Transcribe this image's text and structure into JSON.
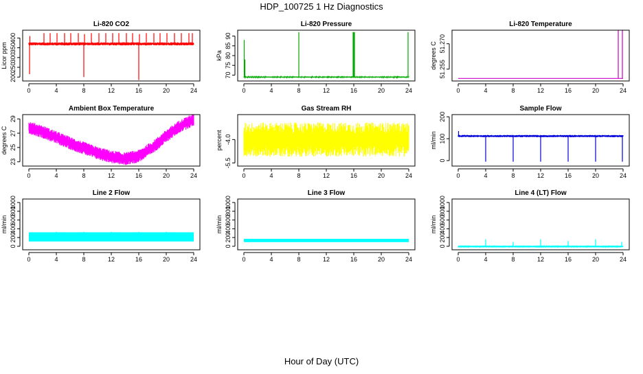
{
  "figure": {
    "title": "HDP_100725  1 Hz Diagnostics",
    "xlabel": "Hour of Day (UTC)"
  },
  "chart_data": [
    {
      "type": "line",
      "title": "Li-820 CO2",
      "ylabel": "Licor ppm",
      "color": "#ff0000",
      "xlim": [
        0,
        24
      ],
      "ylim": [
        180,
        440
      ],
      "xticks": [
        0,
        4,
        8,
        12,
        16,
        20,
        24
      ],
      "yticks": [
        200,
        250,
        300,
        350,
        400
      ],
      "baseline": 370,
      "noise": 8,
      "x": [
        0.1,
        0.15,
        2.2,
        3.1,
        4.1,
        5.2,
        6.1,
        7.2,
        8.0,
        8.1,
        9.1,
        10.2,
        11.2,
        12.2,
        13.1,
        14.2,
        15.1,
        16.0,
        16.1,
        17.1,
        18.2,
        19.1,
        20.1,
        21.2,
        22.2,
        23.3,
        23.8
      ],
      "y": [
        215,
        410,
        425,
        425,
        425,
        425,
        425,
        425,
        200,
        420,
        425,
        425,
        425,
        425,
        425,
        425,
        425,
        185,
        420,
        425,
        425,
        425,
        425,
        425,
        425,
        425,
        425
      ]
    },
    {
      "type": "line",
      "title": "Li-820 Pressure",
      "ylabel": "kPa",
      "color": "#00aa00",
      "xlim": [
        0,
        24
      ],
      "ylim": [
        67,
        93
      ],
      "xticks": [
        0,
        4,
        8,
        12,
        16,
        20,
        24
      ],
      "yticks": [
        70,
        75,
        80,
        85,
        90
      ],
      "baseline": 69,
      "noise": 0.3,
      "x": [
        0.05,
        0.15,
        8.0,
        15.9,
        16.0,
        16.1,
        23.9
      ],
      "y": [
        88,
        78,
        92,
        92,
        92,
        92,
        92
      ]
    },
    {
      "type": "line",
      "title": "Li-820 Temperature",
      "ylabel": "degrees C",
      "color": "#cc00cc",
      "xlim": [
        0,
        24
      ],
      "ylim": [
        51.248,
        51.278
      ],
      "xticks": [
        0,
        4,
        8,
        12,
        16,
        20,
        24
      ],
      "yticks": [
        51.255,
        51.27
      ],
      "yticklabels": [
        "51.255",
        "51.270"
      ],
      "baseline": 51.2495,
      "noise": 0,
      "x": [
        23.3,
        23.9
      ],
      "y": [
        51.278,
        51.278
      ]
    },
    {
      "type": "line",
      "title": "Ambient Box Temperature",
      "ylabel": "degrees C",
      "color": "#ff00ff",
      "xlim": [
        0,
        24
      ],
      "ylim": [
        22.4,
        29.6
      ],
      "xticks": [
        0,
        4,
        8,
        12,
        16,
        20,
        24
      ],
      "yticks": [
        23,
        25,
        27,
        29
      ],
      "curve_x": [
        0,
        2,
        4,
        6,
        8,
        10,
        12,
        14,
        16,
        18,
        20,
        22,
        24
      ],
      "curve_y": [
        27.8,
        27.2,
        26.4,
        25.6,
        24.9,
        24.2,
        23.7,
        23.4,
        23.8,
        25.0,
        26.6,
        28.0,
        28.9
      ],
      "noise": 0.9
    },
    {
      "type": "line",
      "title": "Gas Stream RH",
      "ylabel": "percent",
      "color": "#ffff00",
      "xlim": [
        0,
        24
      ],
      "ylim": [
        -5.7,
        -2.4
      ],
      "xticks": [
        0,
        4,
        8,
        12,
        16,
        20,
        24
      ],
      "yticks": [
        -5.5,
        -4.0
      ],
      "yticklabels": [
        "-5.5",
        "-4.0"
      ],
      "baseline": -4.0,
      "noise": 1.1
    },
    {
      "type": "line",
      "title": "Sample Flow",
      "ylabel": "ml/min",
      "color": "#0000dd",
      "xlim": [
        0,
        24
      ],
      "ylim": [
        -25,
        210
      ],
      "xticks": [
        0,
        4,
        8,
        12,
        16,
        20,
        24
      ],
      "yticks": [
        0,
        100,
        200
      ],
      "baseline": 112,
      "noise": 5,
      "x": [
        0.05,
        4.0,
        8.0,
        12.0,
        16.0,
        20.0,
        23.9
      ],
      "y": [
        135,
        -5,
        -5,
        -5,
        -5,
        -5,
        -5
      ]
    },
    {
      "type": "line",
      "title": "Line 2 Flow",
      "ylabel": "ml/min",
      "color": "#00ffff",
      "xlim": [
        0,
        24
      ],
      "ylim": [
        -80,
        1080
      ],
      "xticks": [
        0,
        4,
        8,
        12,
        16,
        20,
        24
      ],
      "yticks": [
        0,
        200,
        400,
        600,
        800,
        1000
      ],
      "band": [
        110,
        320
      ],
      "x": [
        4.0,
        8.0,
        12.0,
        16.0,
        20.0
      ],
      "y": [
        330,
        330,
        330,
        330,
        330
      ]
    },
    {
      "type": "line",
      "title": "Line 3 Flow",
      "ylabel": "ml/min",
      "color": "#00ffff",
      "xlim": [
        0,
        24
      ],
      "ylim": [
        -80,
        1080
      ],
      "xticks": [
        0,
        4,
        8,
        12,
        16,
        20,
        24
      ],
      "yticks": [
        0,
        200,
        400,
        600,
        800,
        1000
      ],
      "band": [
        95,
        170
      ],
      "x": [
        4.0,
        8.0,
        12.0,
        16.0,
        20.0
      ],
      "y": [
        60,
        60,
        60,
        60,
        60
      ]
    },
    {
      "type": "line",
      "title": "Line 4 (LT) Flow",
      "ylabel": "ml/min",
      "color": "#00ffff",
      "xlim": [
        0,
        24
      ],
      "ylim": [
        -80,
        1080
      ],
      "xticks": [
        0,
        4,
        8,
        12,
        16,
        20,
        24
      ],
      "yticks": [
        0,
        200,
        400,
        600,
        800,
        1000
      ],
      "baseline": -5,
      "noise": 6,
      "x": [
        4.0,
        8.0,
        12.0,
        16.0,
        20.0,
        23.8
      ],
      "y": [
        160,
        100,
        160,
        120,
        160,
        100
      ]
    }
  ]
}
